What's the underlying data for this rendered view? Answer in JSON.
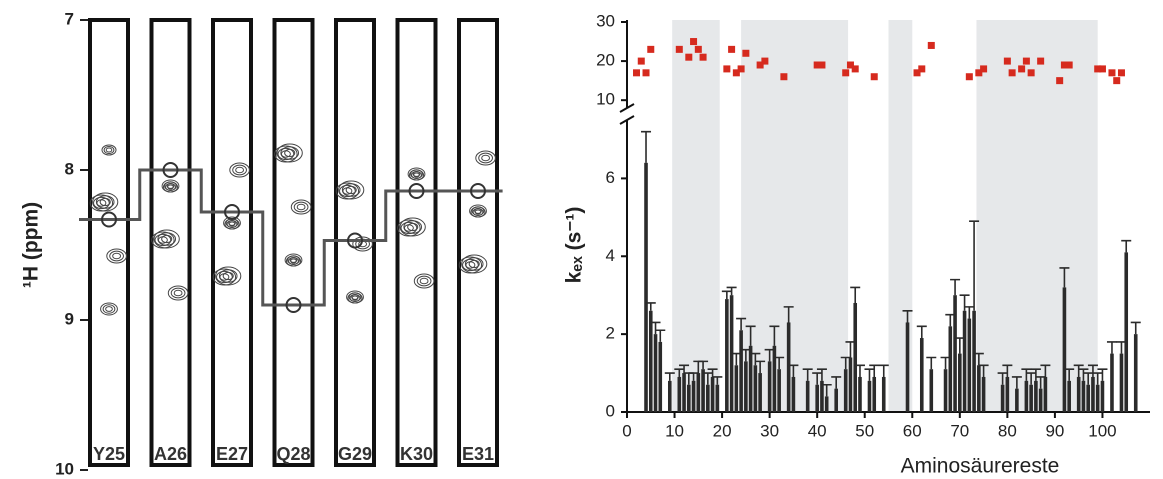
{
  "strip_panel": {
    "ylabel": "¹H (ppm)",
    "ylim": [
      7,
      10
    ],
    "yticks": [
      7,
      8,
      9,
      10
    ],
    "strips": [
      "Y25",
      "A26",
      "E27",
      "Q28",
      "G29",
      "K30",
      "E31"
    ],
    "shifts": [
      8.33,
      8.0,
      8.28,
      8.9,
      8.47,
      8.14,
      8.14
    ]
  },
  "chart_data": {
    "type": "bar",
    "xlabel": "Aminosäurereste",
    "ylabel": "kₑₓ (s⁻¹)",
    "xlim": [
      0,
      110
    ],
    "xticks": [
      0,
      10,
      20,
      30,
      40,
      50,
      60,
      70,
      80,
      90,
      100
    ],
    "ylim": [
      0,
      7.5
    ],
    "yticks": [
      0,
      2,
      4,
      6
    ],
    "y2lim": [
      8,
      30
    ],
    "y2ticks": [
      10,
      20,
      30
    ],
    "shaded_regions": [
      [
        9.5,
        19.5
      ],
      [
        24,
        46.5
      ],
      [
        55,
        60
      ],
      [
        73.5,
        99
      ]
    ],
    "x": [
      4,
      5,
      6,
      7,
      9,
      11,
      12,
      13,
      14,
      15,
      16,
      17,
      18,
      19,
      21,
      22,
      23,
      24,
      25,
      26,
      27,
      28,
      30,
      31,
      32,
      34,
      35,
      38,
      40,
      41,
      42,
      44,
      46,
      47,
      48,
      49,
      51,
      52,
      54,
      59,
      62,
      64,
      67,
      68,
      69,
      70,
      71,
      72,
      73,
      74,
      75,
      79,
      80,
      82,
      84,
      85,
      86,
      87,
      88,
      92,
      93,
      95,
      96,
      97,
      98,
      99,
      100,
      102,
      104,
      105,
      107
    ],
    "series": [
      {
        "color": "#2b2b2b",
        "values": [
          6.4,
          2.6,
          2.0,
          1.8,
          0.8,
          0.9,
          1.0,
          0.7,
          0.8,
          1.0,
          1.1,
          0.7,
          0.9,
          0.7,
          2.9,
          3.0,
          1.2,
          2.1,
          1.3,
          1.7,
          1.2,
          1.0,
          1.3,
          1.7,
          1.1,
          2.3,
          0.9,
          0.8,
          0.7,
          0.8,
          0.4,
          0.6,
          1.1,
          1.4,
          2.8,
          0.9,
          0.8,
          0.9,
          0.9,
          2.3,
          1.9,
          1.1,
          1.1,
          2.2,
          3.0,
          1.5,
          2.6,
          2.4,
          2.6,
          1.2,
          0.9,
          0.7,
          0.9,
          0.6,
          0.8,
          0.7,
          0.8,
          0.6,
          0.9,
          3.2,
          0.8,
          0.9,
          0.8,
          0.7,
          0.9,
          0.7,
          0.8,
          1.5,
          1.5,
          4.1,
          2.0
        ],
        "errors": [
          0.8,
          0.2,
          0.3,
          0.3,
          0.2,
          0.2,
          0.2,
          0.3,
          0.2,
          0.3,
          0.2,
          0.3,
          0.2,
          0.2,
          0.2,
          0.2,
          0.3,
          0.3,
          0.3,
          0.5,
          0.3,
          0.3,
          0.3,
          0.5,
          0.3,
          0.4,
          0.3,
          0.3,
          0.3,
          0.3,
          0.3,
          0.3,
          0.3,
          0.4,
          0.4,
          0.3,
          0.3,
          0.3,
          0.3,
          0.3,
          0.3,
          0.3,
          0.3,
          0.3,
          0.4,
          0.4,
          0.4,
          0.3,
          2.3,
          0.3,
          0.3,
          0.3,
          0.3,
          0.3,
          0.3,
          0.3,
          0.3,
          0.3,
          0.3,
          0.5,
          0.3,
          0.3,
          0.3,
          0.3,
          0.3,
          0.3,
          0.3,
          0.3,
          0.3,
          0.3,
          0.3
        ]
      },
      {
        "color": "#d62a1e",
        "axis": "y2",
        "x": [
          2,
          3,
          4,
          5,
          11,
          13,
          14,
          15,
          16,
          21,
          22,
          23,
          24,
          25,
          28,
          29,
          33,
          40,
          41,
          46,
          47,
          48,
          52,
          61,
          62,
          64,
          72,
          74,
          75,
          80,
          81,
          83,
          84,
          85,
          87,
          91,
          92,
          93,
          99,
          100,
          102,
          103,
          104
        ],
        "values": [
          17,
          20,
          17,
          23,
          23,
          21,
          25,
          23,
          21,
          18,
          23,
          17,
          18,
          22,
          19,
          20,
          16,
          19,
          19,
          17,
          19,
          18,
          16,
          17,
          18,
          24,
          16,
          17,
          18,
          20,
          17,
          18,
          20,
          17,
          20,
          15,
          19,
          19,
          18,
          18,
          17,
          15,
          17
        ]
      }
    ]
  }
}
